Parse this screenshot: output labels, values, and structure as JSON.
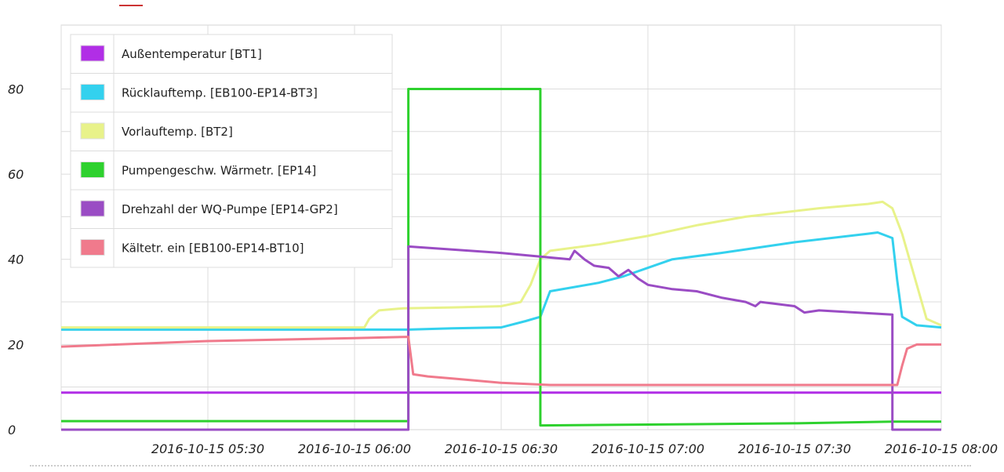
{
  "chart_data": {
    "type": "line",
    "xlabel": "",
    "ylabel": "",
    "ylim": [
      0,
      95
    ],
    "y_ticks": [
      "0",
      "20",
      "40",
      "60",
      "80"
    ],
    "x_ticks": [
      "2016-10-15 05:30",
      "2016-10-15 06:00",
      "2016-10-15 06:30",
      "2016-10-15 07:00",
      "2016-10-15 07:30",
      "2016-10-15 08:00"
    ],
    "x_range": [
      "2016-10-15 05:00",
      "2016-10-15 08:00"
    ],
    "grid": true,
    "legend_position": "top-left",
    "series": [
      {
        "name": "Außentemperatur [BT1]",
        "color": "#b12ee6",
        "points": [
          [
            "05:00",
            8.7
          ],
          [
            "08:00",
            8.7
          ]
        ]
      },
      {
        "name": "Rücklauftemp. [EB100-EP14-BT3]",
        "color": "#33d1ee",
        "points": [
          [
            "05:00",
            23.5
          ],
          [
            "06:11",
            23.5
          ],
          [
            "06:20",
            23.8
          ],
          [
            "06:30",
            24.0
          ],
          [
            "06:35",
            25.5
          ],
          [
            "06:38",
            26.5
          ],
          [
            "06:40",
            32.5
          ],
          [
            "06:50",
            34.5
          ],
          [
            "06:55",
            36.0
          ],
          [
            "07:00",
            38.0
          ],
          [
            "07:05",
            40.0
          ],
          [
            "07:15",
            41.5
          ],
          [
            "07:30",
            44.0
          ],
          [
            "07:45",
            46.0
          ],
          [
            "07:47",
            46.3
          ],
          [
            "07:50",
            45.0
          ],
          [
            "07:51",
            35.0
          ],
          [
            "07:52",
            26.5
          ],
          [
            "07:55",
            24.5
          ],
          [
            "08:00",
            24.0
          ]
        ]
      },
      {
        "name": "Vorlauftemp. [BT2]",
        "color": "#e8f28a",
        "points": [
          [
            "05:00",
            24.0
          ],
          [
            "06:02",
            24.0
          ],
          [
            "06:03",
            26.0
          ],
          [
            "06:05",
            28.0
          ],
          [
            "06:10",
            28.5
          ],
          [
            "06:20",
            28.7
          ],
          [
            "06:30",
            29.0
          ],
          [
            "06:34",
            30.0
          ],
          [
            "06:36",
            34.0
          ],
          [
            "06:38",
            40.0
          ],
          [
            "06:40",
            42.0
          ],
          [
            "06:50",
            43.5
          ],
          [
            "07:00",
            45.5
          ],
          [
            "07:10",
            48.0
          ],
          [
            "07:20",
            50.0
          ],
          [
            "07:35",
            52.0
          ],
          [
            "07:45",
            53.0
          ],
          [
            "07:48",
            53.5
          ],
          [
            "07:50",
            52.0
          ],
          [
            "07:52",
            46.0
          ],
          [
            "07:54",
            38.0
          ],
          [
            "07:57",
            26.0
          ],
          [
            "08:00",
            24.5
          ]
        ]
      },
      {
        "name": "Pumpengeschw. Wärmetr. [EP14]",
        "color": "#2ed12e",
        "points": [
          [
            "05:00",
            2.0
          ],
          [
            "06:11",
            2.0
          ],
          [
            "06:11",
            80.0
          ],
          [
            "06:38",
            80.0
          ],
          [
            "06:38",
            1.0
          ],
          [
            "07:00",
            1.2
          ],
          [
            "07:30",
            1.5
          ],
          [
            "07:50",
            1.9
          ],
          [
            "08:00",
            1.9
          ]
        ]
      },
      {
        "name": "Drehzahl der WQ-Pumpe [EP14-GP2]",
        "color": "#9a4cc4",
        "points": [
          [
            "05:00",
            0.0
          ],
          [
            "06:11",
            0.0
          ],
          [
            "06:11",
            43.0
          ],
          [
            "06:30",
            41.5
          ],
          [
            "06:44",
            40.0
          ],
          [
            "06:45",
            42.0
          ],
          [
            "06:46",
            41.0
          ],
          [
            "06:47",
            40.0
          ],
          [
            "06:49",
            38.5
          ],
          [
            "06:52",
            38.0
          ],
          [
            "06:54",
            36.0
          ],
          [
            "06:56",
            37.5
          ],
          [
            "06:58",
            35.5
          ],
          [
            "07:00",
            34.0
          ],
          [
            "07:05",
            33.0
          ],
          [
            "07:10",
            32.5
          ],
          [
            "07:15",
            31.0
          ],
          [
            "07:20",
            30.0
          ],
          [
            "07:22",
            29.0
          ],
          [
            "07:23",
            30.0
          ],
          [
            "07:30",
            29.0
          ],
          [
            "07:32",
            27.5
          ],
          [
            "07:35",
            28.0
          ],
          [
            "07:50",
            27.0
          ],
          [
            "07:50",
            0.0
          ],
          [
            "08:00",
            0.0
          ]
        ]
      },
      {
        "name": "Kältetr. ein [EB100-EP14-BT10]",
        "color": "#f07a8c",
        "points": [
          [
            "05:00",
            19.5
          ],
          [
            "05:30",
            20.8
          ],
          [
            "06:00",
            21.5
          ],
          [
            "06:11",
            21.8
          ],
          [
            "06:12",
            13.0
          ],
          [
            "06:15",
            12.5
          ],
          [
            "06:20",
            12.0
          ],
          [
            "06:30",
            11.0
          ],
          [
            "06:40",
            10.5
          ],
          [
            "07:00",
            10.5
          ],
          [
            "07:30",
            10.5
          ],
          [
            "07:51",
            10.5
          ],
          [
            "07:52",
            15.0
          ],
          [
            "07:53",
            19.0
          ],
          [
            "07:55",
            20.0
          ],
          [
            "08:00",
            20.0
          ]
        ]
      }
    ]
  }
}
